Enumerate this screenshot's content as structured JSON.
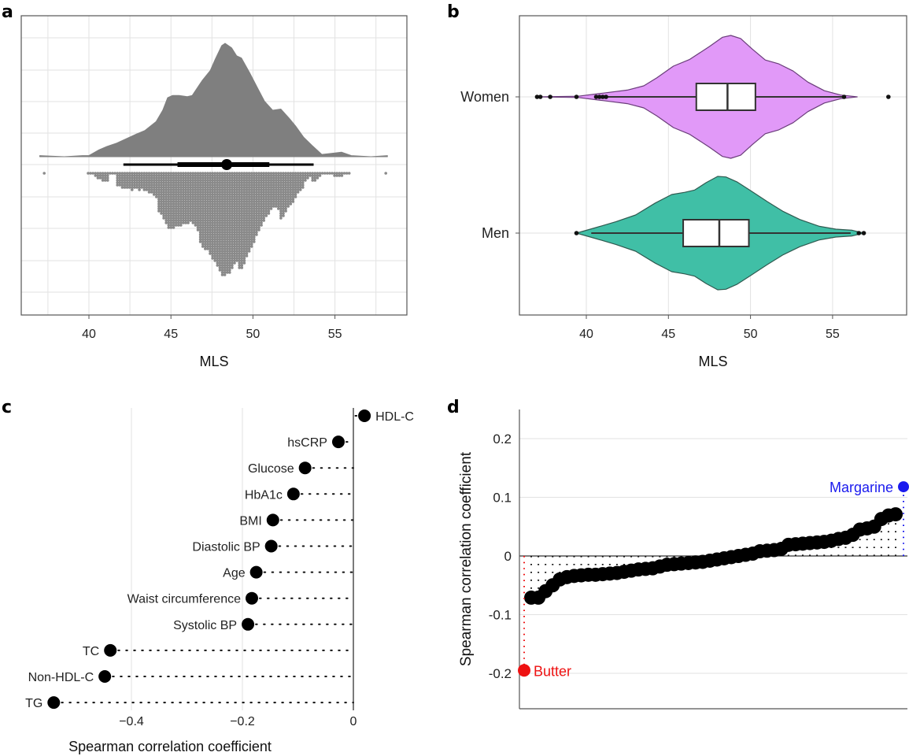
{
  "colors": {
    "density_fill": "#7f7f7f",
    "dot_gray": "#8a8a8a",
    "women": "#e199f8",
    "men": "#40bfa6",
    "butter": "#ee1111",
    "margarine": "#1a1aee",
    "grid": "#e2e2e2"
  },
  "chart_data": [
    {
      "panel": "a",
      "type": "area",
      "title": "",
      "xlabel": "MLS",
      "ylabel": "",
      "xlim": [
        36.5,
        58.8
      ],
      "xticks": [
        40,
        45,
        50,
        55
      ],
      "grid": true,
      "density": {
        "x": [
          37.0,
          38.5,
          39.6,
          40.0,
          40.6,
          41.1,
          41.7,
          42.3,
          42.9,
          43.4,
          44.1,
          44.5,
          44.8,
          45.1,
          45.5,
          46.0,
          46.3,
          46.9,
          47.4,
          47.7,
          48.1,
          48.3,
          48.7,
          49.0,
          49.3,
          49.8,
          50.3,
          50.7,
          51.2,
          51.7,
          52.2,
          52.6,
          53.1,
          53.6,
          54.2,
          54.8,
          55.4,
          56.0,
          57.2,
          58.2
        ],
        "rel_height": [
          0.01,
          0.0,
          0.01,
          0.01,
          0.06,
          0.09,
          0.12,
          0.16,
          0.2,
          0.23,
          0.31,
          0.41,
          0.52,
          0.54,
          0.54,
          0.53,
          0.54,
          0.67,
          0.76,
          0.86,
          0.98,
          1.0,
          0.96,
          0.89,
          0.87,
          0.74,
          0.6,
          0.49,
          0.41,
          0.42,
          0.34,
          0.27,
          0.17,
          0.1,
          0.02,
          0.03,
          0.04,
          0.01,
          0.0,
          0.01
        ]
      },
      "interval": {
        "median": 48.4,
        "inner": [
          45.4,
          51.0
        ],
        "outer": [
          42.1,
          53.7
        ]
      },
      "dotplot_note": "Dot plot of individual MLS values mirrored below interval"
    },
    {
      "panel": "b",
      "type": "violin",
      "xlabel": "MLS",
      "ylabel": "",
      "xlim": [
        36.5,
        58.8
      ],
      "xticks": [
        40,
        45,
        50,
        55
      ],
      "categories": [
        "Women",
        "Men"
      ],
      "series": [
        {
          "name": "Women",
          "box": {
            "q1": 46.7,
            "median": 48.6,
            "q3": 50.3,
            "whisker_low": 41.3,
            "whisker_high": 55.7
          },
          "outliers": [
            37.0,
            37.2,
            37.8,
            39.4,
            40.6,
            40.8,
            41.0,
            41.2,
            55.7,
            58.4
          ],
          "density": {
            "x": [
              37.0,
              39.5,
              41.0,
              42.5,
              43.5,
              44.3,
              45.3,
              46.3,
              47.5,
              48.3,
              48.8,
              49.4,
              50.1,
              50.9,
              51.7,
              52.6,
              53.5,
              54.5,
              55.5,
              56.5
            ],
            "rel_width": [
              0.0,
              0.01,
              0.06,
              0.11,
              0.18,
              0.31,
              0.5,
              0.61,
              0.82,
              0.97,
              1.0,
              0.95,
              0.78,
              0.6,
              0.54,
              0.42,
              0.24,
              0.1,
              0.03,
              0.0
            ]
          }
        },
        {
          "name": "Men",
          "box": {
            "q1": 45.9,
            "median": 48.1,
            "q3": 49.9,
            "whisker_low": 40.3,
            "whisker_high": 56.1
          },
          "outliers": [
            39.4,
            56.6,
            56.9
          ],
          "density": {
            "x": [
              39.4,
              40.5,
              41.8,
              43.0,
              44.2,
              45.2,
              46.0,
              46.6,
              47.3,
              48.0,
              48.5,
              49.2,
              50.0,
              51.0,
              52.0,
              53.0,
              54.2,
              55.2,
              56.2,
              56.9
            ],
            "rel_width": [
              0.0,
              0.09,
              0.2,
              0.32,
              0.53,
              0.68,
              0.72,
              0.76,
              0.89,
              1.0,
              0.99,
              0.9,
              0.75,
              0.56,
              0.38,
              0.24,
              0.12,
              0.07,
              0.05,
              0.0
            ]
          }
        }
      ]
    },
    {
      "panel": "c",
      "type": "scatter",
      "subtype": "lollipop",
      "xlabel": "Spearman correlation coefficient",
      "ylabel": "",
      "xlim": [
        -0.56,
        0.04
      ],
      "xticks": [
        -0.4,
        -0.2,
        0
      ],
      "xtick_labels": [
        "−0.4",
        "−0.2",
        "0"
      ],
      "categories": [
        "HDL-C",
        "hsCRP",
        "Glucose",
        "HbA1c",
        "BMI",
        "Diastolic BP",
        "Age",
        "Waist circumference",
        "Systolic BP",
        "TC",
        "Non-HDL-C",
        "TG"
      ],
      "values": [
        0.02,
        -0.027,
        -0.087,
        -0.108,
        -0.145,
        -0.148,
        -0.175,
        -0.183,
        -0.19,
        -0.438,
        -0.448,
        -0.54
      ]
    },
    {
      "panel": "d",
      "type": "scatter",
      "subtype": "ranked-lollipop",
      "xlabel": "",
      "ylabel": "Spearman correlation coefficient",
      "ylim": [
        -0.26,
        0.25
      ],
      "yticks": [
        0.2,
        0.1,
        0,
        -0.1,
        -0.2
      ],
      "ytick_labels": [
        "0.2",
        "0.1",
        "0",
        "-0.1",
        "-0.2"
      ],
      "highlight": [
        {
          "name": "Butter",
          "value": -0.195,
          "rank": 0
        },
        {
          "name": "Margarine",
          "value": 0.118,
          "rank": 48
        }
      ],
      "values": [
        -0.071,
        -0.071,
        -0.06,
        -0.05,
        -0.04,
        -0.036,
        -0.034,
        -0.033,
        -0.032,
        -0.032,
        -0.031,
        -0.03,
        -0.029,
        -0.027,
        -0.025,
        -0.023,
        -0.022,
        -0.021,
        -0.018,
        -0.015,
        -0.014,
        -0.013,
        -0.012,
        -0.011,
        -0.01,
        -0.008,
        -0.006,
        -0.004,
        -0.002,
        0.0,
        0.002,
        0.004,
        0.008,
        0.009,
        0.01,
        0.012,
        0.019,
        0.02,
        0.021,
        0.022,
        0.023,
        0.024,
        0.026,
        0.029,
        0.031,
        0.036,
        0.045,
        0.047,
        0.05,
        0.063,
        0.069,
        0.071
      ]
    }
  ],
  "labels": {
    "panel_a": "a",
    "panel_b": "b",
    "panel_c": "c",
    "panel_d": "d"
  }
}
